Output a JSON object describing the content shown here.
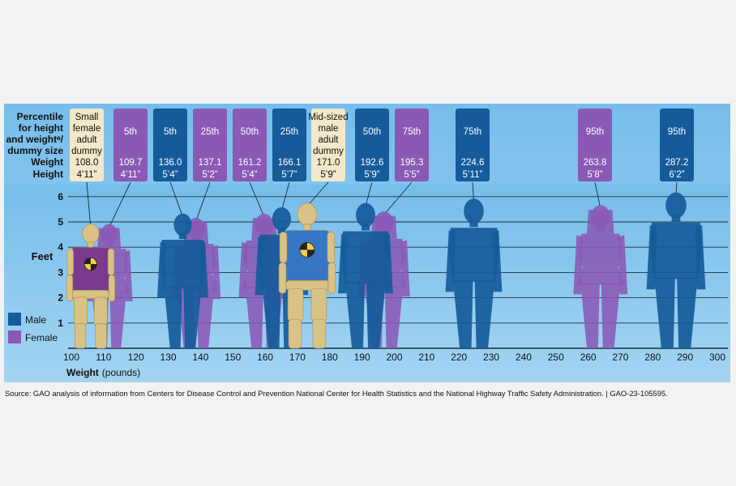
{
  "header": {
    "row_label_lines": [
      "Percentile",
      "for height",
      "and weightᵃ/",
      "dummy size"
    ],
    "weight_label": "Weight",
    "height_label": "Height"
  },
  "axes": {
    "y_label": "Feet",
    "y_ticks": [
      "1",
      "2",
      "3",
      "4",
      "5",
      "6"
    ],
    "x_label_bold": "Weight",
    "x_label_unit": "(pounds)",
    "x_ticks": [
      "100",
      "110",
      "120",
      "130",
      "140",
      "150",
      "160",
      "170",
      "180",
      "190",
      "200",
      "210",
      "220",
      "230",
      "240",
      "250",
      "260",
      "270",
      "280",
      "290",
      "300"
    ]
  },
  "legend": {
    "male_label": "Male",
    "female_label": "Female",
    "male_color": "#155b9a",
    "female_color": "#8a59b6"
  },
  "colors": {
    "plot_bg": "#8ec8ef",
    "dummy_box_bg": "#f3e8c9",
    "dummy_body": "#d9c285",
    "male": "#155b9a",
    "female": "#8a59b6"
  },
  "chart_data": {
    "type": "scatter",
    "x_label": "Weight (pounds)",
    "y_label": "Feet",
    "xlim": [
      100,
      300
    ],
    "ylim": [
      0,
      6
    ],
    "grid": true,
    "legend": "left",
    "points": [
      {
        "kind": "dummy",
        "sex": "female",
        "label_lines": [
          "Small",
          "female",
          "adult",
          "dummy"
        ],
        "weight": "108.0",
        "height": "4’11”",
        "x": 108.0,
        "y": 4.92
      },
      {
        "kind": "female",
        "sex": "female",
        "label_lines": [
          "5th"
        ],
        "weight": "109.7",
        "height": "4’11”",
        "x": 109.7,
        "y": 4.92
      },
      {
        "kind": "male",
        "sex": "male",
        "label_lines": [
          "5th"
        ],
        "weight": "136.0",
        "height": "5’4”",
        "x": 136.0,
        "y": 5.33
      },
      {
        "kind": "female",
        "sex": "female",
        "label_lines": [
          "25th"
        ],
        "weight": "137.1",
        "height": "5’2”",
        "x": 137.1,
        "y": 5.17
      },
      {
        "kind": "female",
        "sex": "female",
        "label_lines": [
          "50th"
        ],
        "weight": "161.2",
        "height": "5’4”",
        "x": 161.2,
        "y": 5.33
      },
      {
        "kind": "male",
        "sex": "male",
        "label_lines": [
          "25th"
        ],
        "weight": "166.1",
        "height": "5’7”",
        "x": 166.1,
        "y": 5.58
      },
      {
        "kind": "dummy",
        "sex": "male",
        "label_lines": [
          "Mid-sized",
          "male",
          "adult",
          "dummy"
        ],
        "weight": "171.0",
        "height": "5’9”",
        "x": 171.0,
        "y": 5.75
      },
      {
        "kind": "male",
        "sex": "male",
        "label_lines": [
          "50th"
        ],
        "weight": "192.6",
        "height": "5’9”",
        "x": 192.6,
        "y": 5.75
      },
      {
        "kind": "female",
        "sex": "female",
        "label_lines": [
          "75th"
        ],
        "weight": "195.3",
        "height": "5’5”",
        "x": 195.3,
        "y": 5.42
      },
      {
        "kind": "male",
        "sex": "male",
        "label_lines": [
          "75th"
        ],
        "weight": "224.6",
        "height": "5’11”",
        "x": 224.6,
        "y": 5.92
      },
      {
        "kind": "female",
        "sex": "female",
        "label_lines": [
          "95th"
        ],
        "weight": "263.8",
        "height": "5’8”",
        "x": 263.8,
        "y": 5.67
      },
      {
        "kind": "male",
        "sex": "male",
        "label_lines": [
          "95th"
        ],
        "weight": "287.2",
        "height": "6’2”",
        "x": 287.2,
        "y": 6.17
      }
    ]
  },
  "source": "Source: GAO analysis of information from Centers for Disease Control and Prevention National Center for Health Statistics and the National Highway Traffic Safety Administration.  |  GAO-23-105595."
}
